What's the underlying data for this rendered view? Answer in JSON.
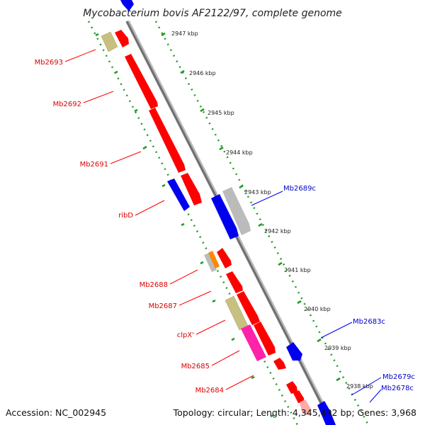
{
  "title": "Mycobacterium bovis AF2122/97, complete genome",
  "accession": "Accession: NC_002945",
  "topology": "Topology: circular; Length: 4,345,492 bp; Genes: 3,968",
  "colors": {
    "forward": "#ff0000",
    "reverse": "#0000ee",
    "grey": "#bbbbbb",
    "olive": "#c8c080",
    "orange": "#ff8800",
    "magenta": "#ff22aa",
    "pink": "#ffaaaa",
    "backbone": "#777777",
    "tick_dots": "#229922",
    "label_fwd": "#dd0000",
    "label_rev": "#0000cc"
  },
  "scale_labels": [
    "2947 kbp",
    "2946 kbp",
    "2945 kbp",
    "2944 kbp",
    "2943 kbp",
    "2942 kbp",
    "2941 kbp",
    "2940 kbp",
    "2939 kbp",
    "2938 kbp"
  ],
  "gene_labels_left": [
    "Mb2693",
    "Mb2692",
    "Mb2691",
    "ribD",
    "Mb2688",
    "Mb2687",
    "clpX'",
    "Mb2685",
    "Mb2684"
  ],
  "gene_labels_right": [
    "Mb2689c",
    "Mb2683c",
    "Mb2679c",
    "Mb2678c"
  ]
}
